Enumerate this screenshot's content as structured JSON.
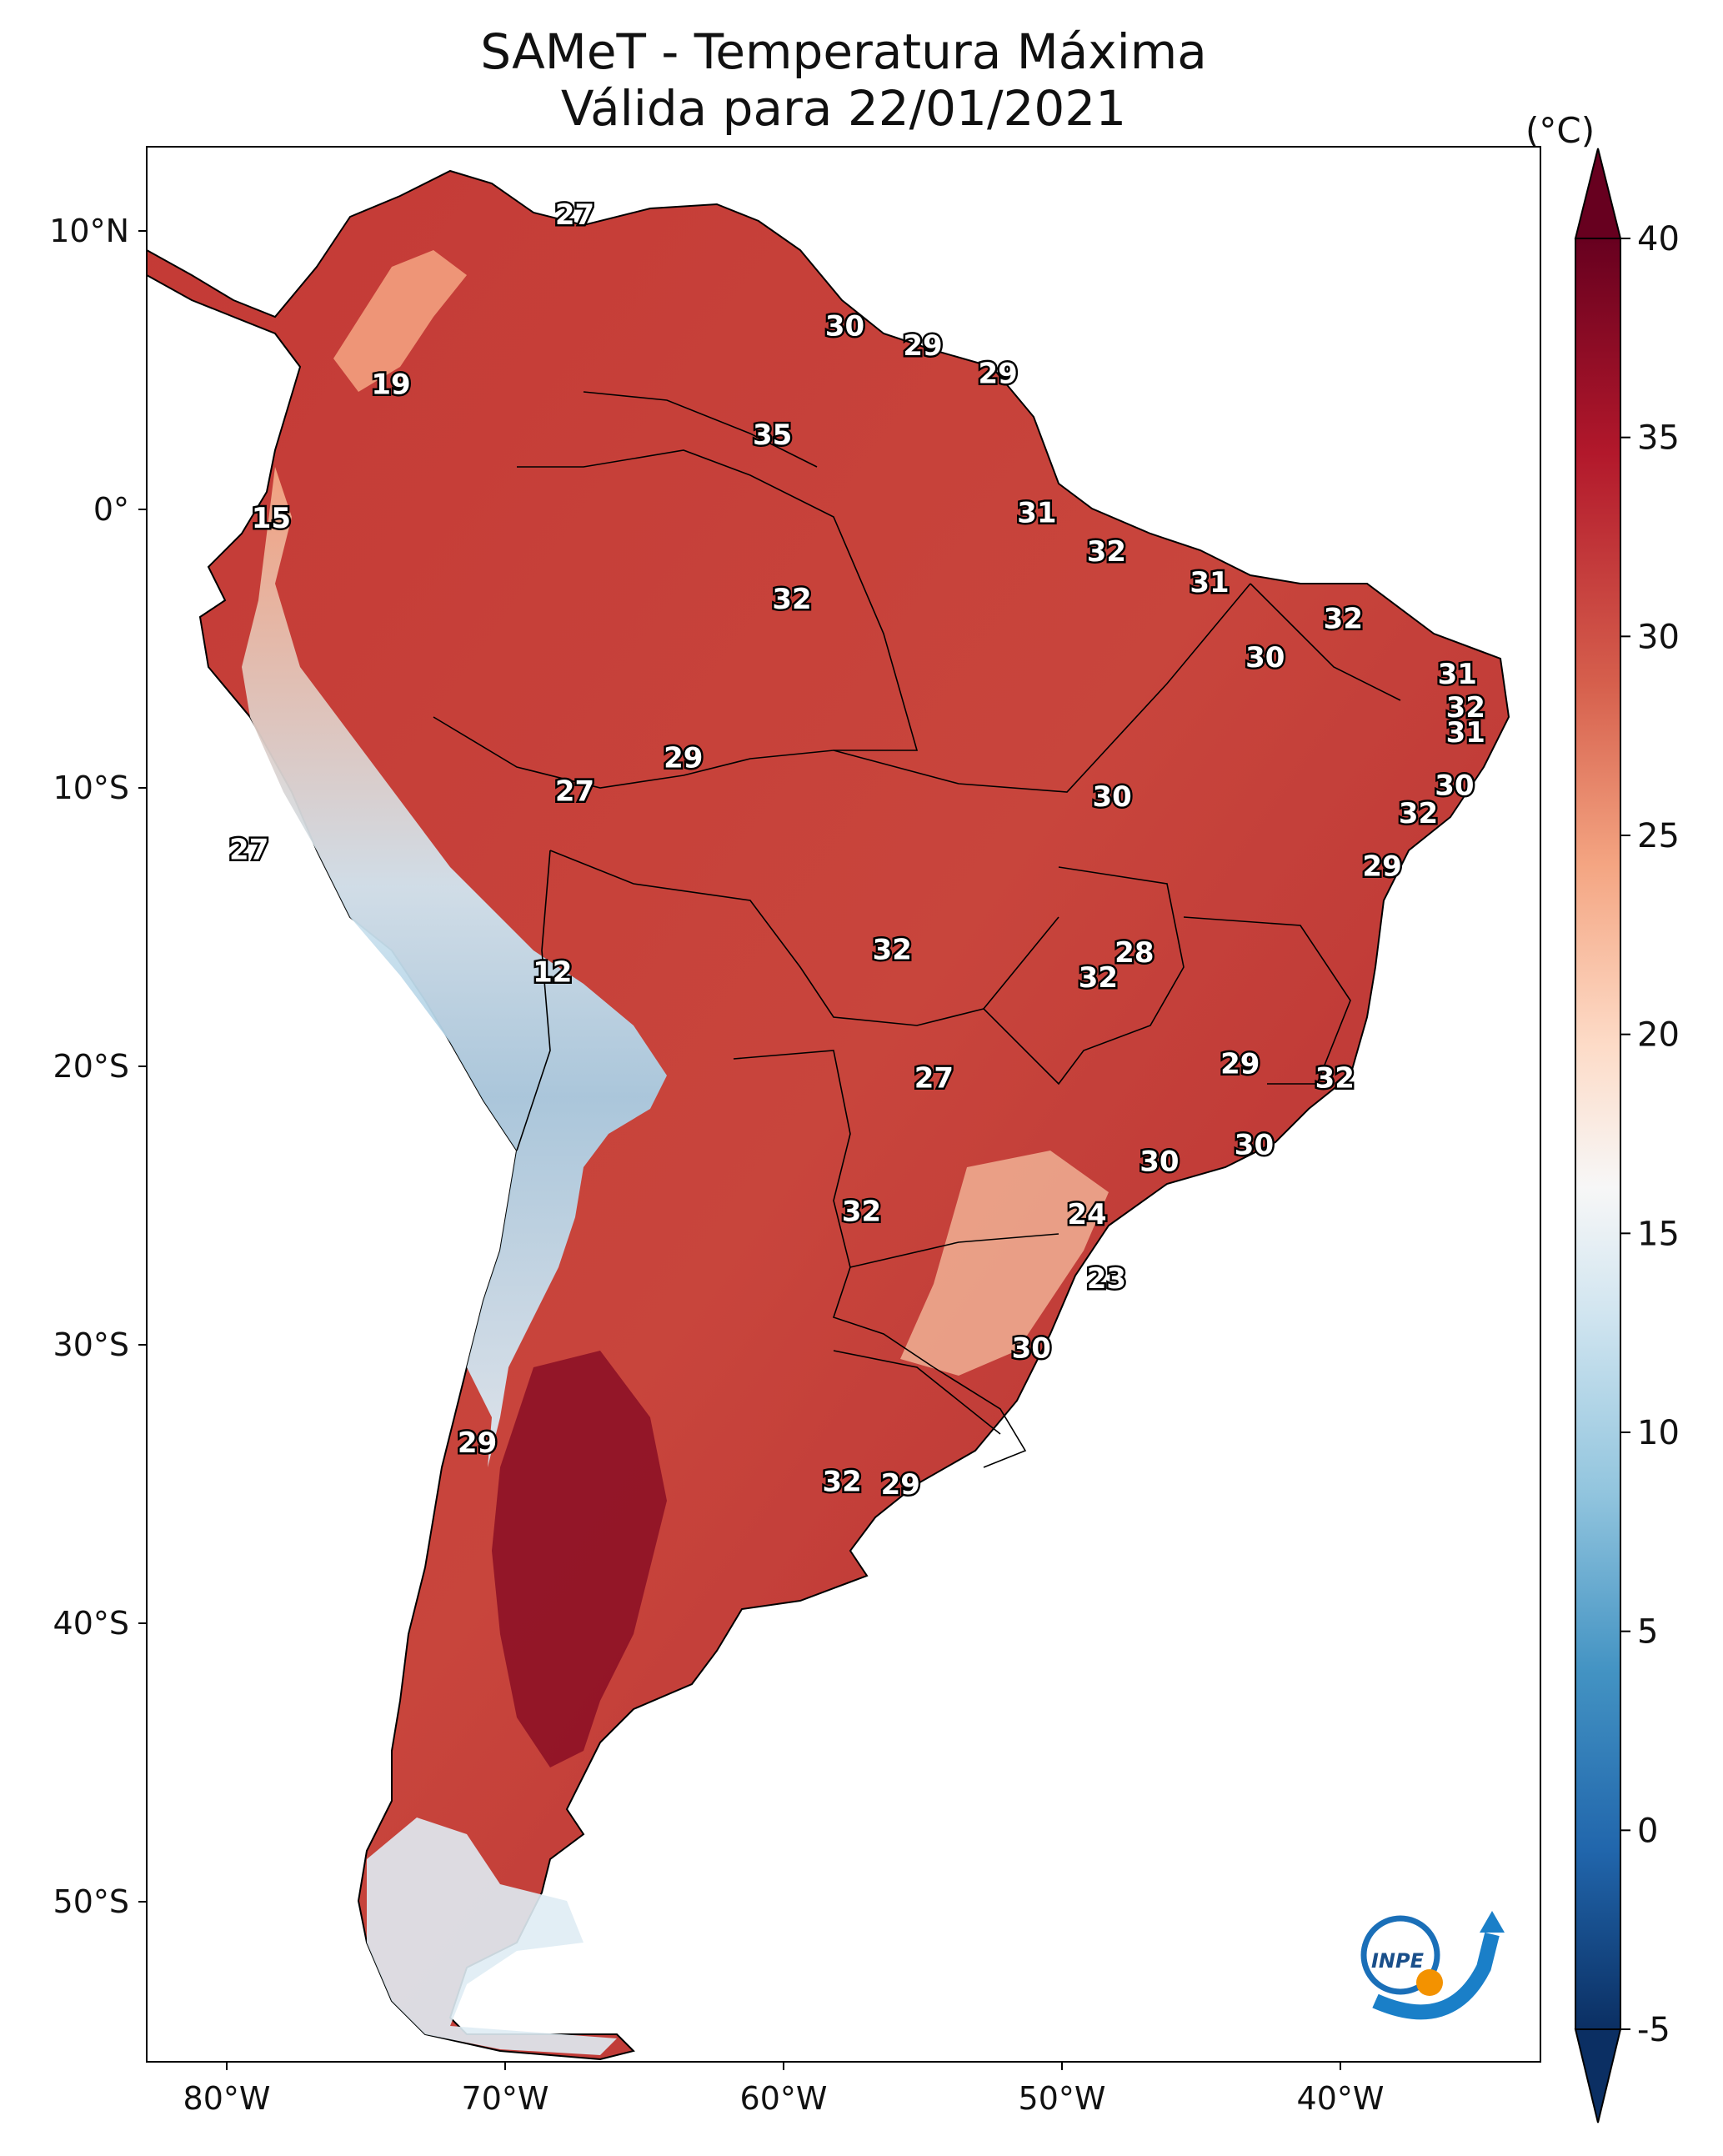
{
  "title": {
    "line1": "SAMeT - Temperatura Máxima",
    "line2": "Válida para 22/01/2021"
  },
  "colorbar": {
    "unit": "(°C)",
    "ticks": [
      40,
      35,
      30,
      25,
      20,
      15,
      10,
      5,
      0,
      -5
    ],
    "range": [
      -5,
      40
    ],
    "colors": [
      "#0b2f63",
      "#2166ac",
      "#4393c3",
      "#92c5de",
      "#d1e5f0",
      "#f7f7f7",
      "#fddbc7",
      "#f4a582",
      "#d6604d",
      "#b2182b",
      "#67001f"
    ]
  },
  "axes": {
    "lat_ticks": [
      "10°N",
      "0°",
      "10°S",
      "20°S",
      "30°S",
      "40°S",
      "50°S"
    ],
    "lon_ticks": [
      "80°W",
      "70°W",
      "60°W",
      "50°W",
      "40°W"
    ]
  },
  "labels": [
    {
      "text": "27",
      "lon": -67.5,
      "lat": 10.6
    },
    {
      "text": "30",
      "lon": -57.8,
      "lat": 6.6
    },
    {
      "text": "29",
      "lon": -55.0,
      "lat": 5.9
    },
    {
      "text": "29",
      "lon": -52.3,
      "lat": 4.9
    },
    {
      "text": "19",
      "lon": -74.1,
      "lat": 4.5
    },
    {
      "text": "35",
      "lon": -60.4,
      "lat": 2.7
    },
    {
      "text": "15",
      "lon": -78.4,
      "lat": -0.3
    },
    {
      "text": "31",
      "lon": -50.9,
      "lat": -0.1
    },
    {
      "text": "32",
      "lon": -48.4,
      "lat": -1.5
    },
    {
      "text": "31",
      "lon": -44.7,
      "lat": -2.6
    },
    {
      "text": "32",
      "lon": -59.7,
      "lat": -3.2
    },
    {
      "text": "32",
      "lon": -39.9,
      "lat": -3.9
    },
    {
      "text": "30",
      "lon": -42.7,
      "lat": -5.3
    },
    {
      "text": "31",
      "lon": -35.8,
      "lat": -5.9
    },
    {
      "text": "32",
      "lon": -35.5,
      "lat": -7.1
    },
    {
      "text": "31",
      "lon": -35.5,
      "lat": -8.0
    },
    {
      "text": "29",
      "lon": -63.6,
      "lat": -8.9
    },
    {
      "text": "30",
      "lon": -35.9,
      "lat": -9.9
    },
    {
      "text": "27",
      "lon": -67.5,
      "lat": -10.1
    },
    {
      "text": "30",
      "lon": -48.2,
      "lat": -10.3
    },
    {
      "text": "32",
      "lon": -37.2,
      "lat": -10.9
    },
    {
      "text": "27",
      "lon": -79.2,
      "lat": -12.2
    },
    {
      "text": "29",
      "lon": -38.5,
      "lat": -12.8
    },
    {
      "text": "32",
      "lon": -56.1,
      "lat": -15.8
    },
    {
      "text": "28",
      "lon": -47.4,
      "lat": -15.9
    },
    {
      "text": "32",
      "lon": -48.7,
      "lat": -16.8
    },
    {
      "text": "12",
      "lon": -68.3,
      "lat": -16.6
    },
    {
      "text": "29",
      "lon": -43.6,
      "lat": -19.9
    },
    {
      "text": "32",
      "lon": -40.2,
      "lat": -20.4
    },
    {
      "text": "27",
      "lon": -54.6,
      "lat": -20.4
    },
    {
      "text": "30",
      "lon": -43.1,
      "lat": -22.8
    },
    {
      "text": "30",
      "lon": -46.5,
      "lat": -23.4
    },
    {
      "text": "32",
      "lon": -57.2,
      "lat": -25.2
    },
    {
      "text": "24",
      "lon": -49.1,
      "lat": -25.3
    },
    {
      "text": "23",
      "lon": -48.4,
      "lat": -27.6
    },
    {
      "text": "30",
      "lon": -51.1,
      "lat": -30.1
    },
    {
      "text": "29",
      "lon": -71.0,
      "lat": -33.5
    },
    {
      "text": "32",
      "lon": -57.9,
      "lat": -34.9
    },
    {
      "text": "29",
      "lon": -55.8,
      "lat": -35.0
    }
  ],
  "logo": {
    "text": "INPE"
  }
}
